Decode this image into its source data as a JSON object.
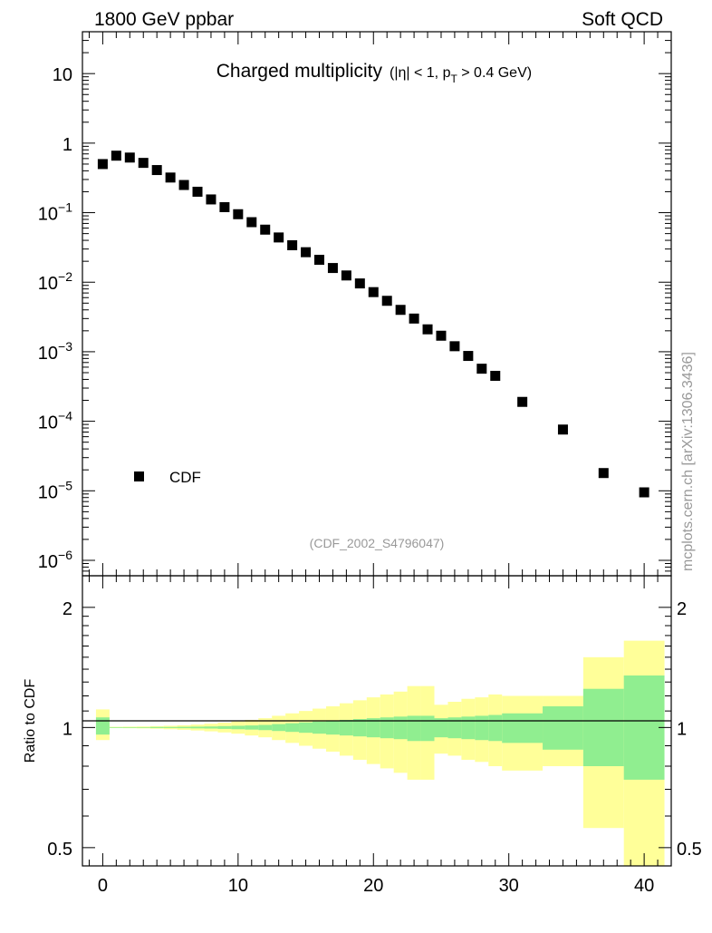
{
  "header": {
    "left": "1800 GeV ppbar",
    "right": "Soft QCD"
  },
  "watermark": "mcplots.cern.ch [arXiv:1306.3436]",
  "colors": {
    "marker": "#000000",
    "stat_band": "#90EE90",
    "total_band": "#FFFF99",
    "unit_line": "#000000",
    "ref_label": "#999999"
  },
  "chart_data": [
    {
      "type": "scatter",
      "title": "Charged multiplicity",
      "title_suffix_pre": "(|η| < 1, p",
      "title_suffix_sub": "T",
      "title_suffix_post": " > 0.4 GeV)",
      "reference_label": "(CDF_2002_S4796047)",
      "legend": [
        "CDF"
      ],
      "legend_position": "bottom-left",
      "log_y": true,
      "xlim": [
        -1.5,
        42
      ],
      "ylim": [
        6e-07,
        40
      ],
      "y_ticks": [
        {
          "value": 10,
          "base": "10",
          "exp": ""
        },
        {
          "value": 1,
          "base": "1",
          "exp": ""
        },
        {
          "value": 0.1,
          "base": "10",
          "exp": "−1"
        },
        {
          "value": 0.01,
          "base": "10",
          "exp": "−2"
        },
        {
          "value": 0.001,
          "base": "10",
          "exp": "−3"
        },
        {
          "value": 0.0001,
          "base": "10",
          "exp": "−4"
        },
        {
          "value": 1e-05,
          "base": "10",
          "exp": "−5"
        },
        {
          "value": 1e-06,
          "base": "10",
          "exp": "−6"
        }
      ],
      "series": [
        {
          "name": "CDF",
          "x": [
            0,
            1,
            2,
            3,
            4,
            5,
            6,
            7,
            8,
            9,
            10,
            11,
            12,
            13,
            14,
            15,
            16,
            17,
            18,
            19,
            20,
            21,
            22,
            23,
            24,
            25,
            26,
            27,
            28,
            29,
            31,
            34,
            37,
            40
          ],
          "y": [
            0.5,
            0.66,
            0.62,
            0.52,
            0.41,
            0.32,
            0.25,
            0.2,
            0.155,
            0.12,
            0.095,
            0.073,
            0.057,
            0.044,
            0.034,
            0.027,
            0.021,
            0.016,
            0.0125,
            0.0096,
            0.0072,
            0.0054,
            0.004,
            0.003,
            0.0021,
            0.0017,
            0.0012,
            0.00087,
            0.00057,
            0.00045,
            0.00019,
            7.6e-05,
            1.8e-05,
            9.5e-06
          ]
        }
      ]
    },
    {
      "type": "area",
      "ylabel": "Ratio to CDF",
      "xlim": [
        -1.5,
        42
      ],
      "ylim": [
        0.45,
        2.4
      ],
      "log_y": true,
      "x_ticks": [
        0,
        10,
        20,
        30,
        40
      ],
      "y_ticks": [
        {
          "value": 2,
          "label": "2"
        },
        {
          "value": 1,
          "label": "1"
        },
        {
          "value": 0.5,
          "label": "0.5"
        }
      ],
      "bin_edges": [
        -0.5,
        0.5,
        1.5,
        2.5,
        3.5,
        4.5,
        5.5,
        6.5,
        7.5,
        8.5,
        9.5,
        10.5,
        11.5,
        12.5,
        13.5,
        14.5,
        15.5,
        16.5,
        17.5,
        18.5,
        19.5,
        20.5,
        21.5,
        22.5,
        23.5,
        24.5,
        25.5,
        26.5,
        27.5,
        28.5,
        29.5,
        32.5,
        35.5,
        38.5,
        41.5
      ],
      "stat_band": [
        [
          0.96,
          1.06
        ],
        [
          0.998,
          1.002
        ],
        [
          0.998,
          1.002
        ],
        [
          0.998,
          1.002
        ],
        [
          0.997,
          1.003
        ],
        [
          0.997,
          1.003
        ],
        [
          0.996,
          1.004
        ],
        [
          0.995,
          1.005
        ],
        [
          0.994,
          1.006
        ],
        [
          0.992,
          1.008
        ],
        [
          0.99,
          1.01
        ],
        [
          0.988,
          1.012
        ],
        [
          0.985,
          1.015
        ],
        [
          0.98,
          1.02
        ],
        [
          0.975,
          1.025
        ],
        [
          0.97,
          1.03
        ],
        [
          0.965,
          1.035
        ],
        [
          0.96,
          1.04
        ],
        [
          0.955,
          1.045
        ],
        [
          0.95,
          1.05
        ],
        [
          0.945,
          1.055
        ],
        [
          0.94,
          1.06
        ],
        [
          0.935,
          1.065
        ],
        [
          0.925,
          1.07
        ],
        [
          0.925,
          1.07
        ],
        [
          0.945,
          1.055
        ],
        [
          0.94,
          1.06
        ],
        [
          0.935,
          1.065
        ],
        [
          0.93,
          1.07
        ],
        [
          0.925,
          1.075
        ],
        [
          0.915,
          1.085
        ],
        [
          0.88,
          1.13
        ],
        [
          0.8,
          1.25
        ],
        [
          0.74,
          1.35
        ]
      ],
      "total_band": [
        [
          0.93,
          1.11
        ],
        [
          0.997,
          1.004
        ],
        [
          0.996,
          1.005
        ],
        [
          0.995,
          1.006
        ],
        [
          0.993,
          1.008
        ],
        [
          0.99,
          1.01
        ],
        [
          0.987,
          1.013
        ],
        [
          0.983,
          1.017
        ],
        [
          0.978,
          1.022
        ],
        [
          0.972,
          1.028
        ],
        [
          0.965,
          1.035
        ],
        [
          0.955,
          1.045
        ],
        [
          0.945,
          1.055
        ],
        [
          0.93,
          1.07
        ],
        [
          0.915,
          1.085
        ],
        [
          0.9,
          1.1
        ],
        [
          0.885,
          1.115
        ],
        [
          0.87,
          1.13
        ],
        [
          0.85,
          1.15
        ],
        [
          0.83,
          1.17
        ],
        [
          0.81,
          1.19
        ],
        [
          0.79,
          1.21
        ],
        [
          0.77,
          1.23
        ],
        [
          0.74,
          1.27
        ],
        [
          0.74,
          1.27
        ],
        [
          0.86,
          1.14
        ],
        [
          0.85,
          1.16
        ],
        [
          0.83,
          1.18
        ],
        [
          0.82,
          1.19
        ],
        [
          0.8,
          1.21
        ],
        [
          0.78,
          1.2
        ],
        [
          0.8,
          1.2
        ],
        [
          0.56,
          1.5
        ],
        [
          0.44,
          1.65
        ]
      ]
    }
  ]
}
